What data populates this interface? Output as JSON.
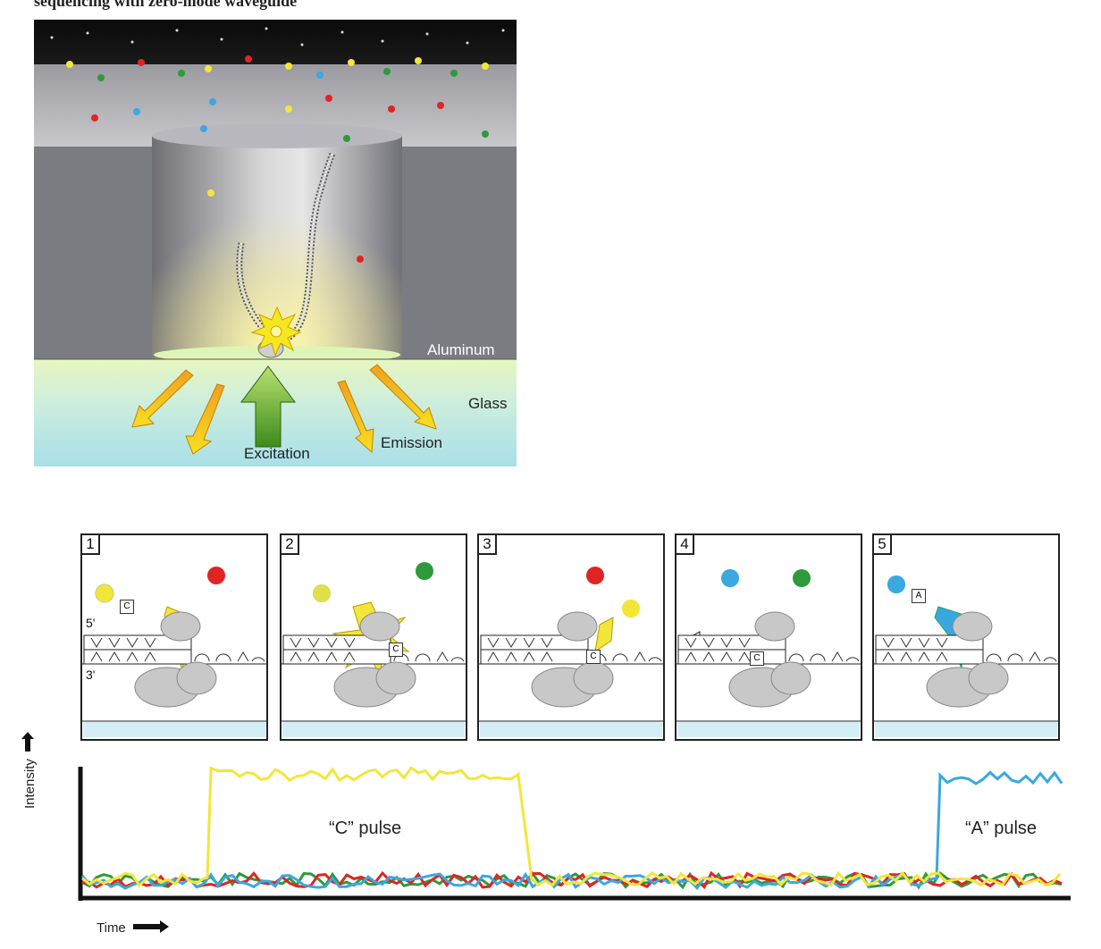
{
  "header_text": "sequencing with zero-mode waveguide",
  "top_figure": {
    "aluminum_label": "Aluminum",
    "glass_label": "Glass",
    "excitation_label": "Excitation",
    "emission_label": "Emission"
  },
  "panels": [
    {
      "number": "1",
      "base": "C"
    },
    {
      "number": "2",
      "base": "C"
    },
    {
      "number": "3",
      "base": "C"
    },
    {
      "number": "4",
      "base": "C"
    },
    {
      "number": "5",
      "base": "A"
    }
  ],
  "strand_labels": {
    "five_prime": "5'",
    "three_prime": "3'"
  },
  "trace": {
    "y_axis_label": "Intensity",
    "x_axis_label": "Time",
    "c_pulse_label": "“C” pulse",
    "a_pulse_label": "“A” pulse"
  },
  "colors": {
    "yellow": "#f2e63a",
    "red": "#e02424",
    "green": "#2e9a3a",
    "blue": "#3aa8e0",
    "aluminum": "#7d7d84",
    "glass": "#bfe8ee"
  }
}
